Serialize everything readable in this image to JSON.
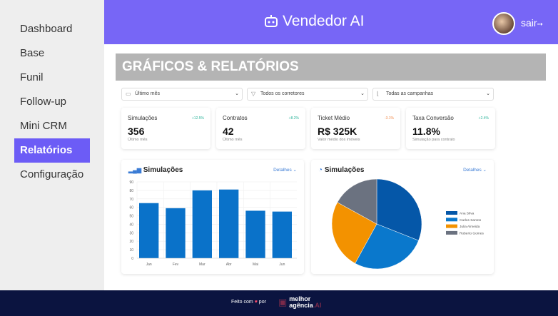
{
  "sidebar": {
    "items": [
      {
        "label": "Dashboard"
      },
      {
        "label": "Base"
      },
      {
        "label": "Funil"
      },
      {
        "label": "Follow-up"
      },
      {
        "label": "Mini CRM"
      },
      {
        "label": "Relatórios",
        "active": true
      },
      {
        "label": "Configuração"
      }
    ]
  },
  "header": {
    "title": "Vendedor AI",
    "logout": "sair"
  },
  "page_title": "GRÁFICOS & RELATÓRIOS",
  "filters": [
    {
      "value": "Último mês",
      "icon": "calendar-icon"
    },
    {
      "value": "Todos os corretores",
      "icon": "filter-icon"
    },
    {
      "value": "Todas as campanhas",
      "icon": "chart-icon"
    }
  ],
  "kpis": [
    {
      "label": "Simulações",
      "change": "+12.5%",
      "value": "356",
      "sub": "Último mês",
      "color": "#2bb39a"
    },
    {
      "label": "Contratos",
      "change": "+8.2%",
      "value": "42",
      "sub": "Último mês",
      "color": "#2bb39a"
    },
    {
      "label": "Ticket Médio",
      "change": "-3.1%",
      "value": "R$ 325K",
      "sub": "Valor médio dos imóveis",
      "color": "#f08a4b"
    },
    {
      "label": "Taxa Conversão",
      "change": "+2.4%",
      "value": "11.8%",
      "sub": "Simulação para contrato",
      "color": "#2bb39a"
    }
  ],
  "details_label": "Detalhes",
  "chart_data": [
    {
      "type": "bar",
      "title": "Simulações",
      "categories": [
        "Jan",
        "Fev",
        "Mar",
        "Abr",
        "Mai",
        "Jun"
      ],
      "values": [
        65,
        59,
        80,
        81,
        56,
        55
      ],
      "ylim": [
        0,
        90
      ],
      "yticks": [
        0,
        10,
        20,
        30,
        40,
        50,
        60,
        70,
        80,
        90
      ],
      "color": "#0a72c9",
      "grid": true
    },
    {
      "type": "pie",
      "title": "Simulações",
      "labels": [
        "Ana Silva",
        "Carlos Santos",
        "Julia Almeida",
        "Roberto Gomes"
      ],
      "values": [
        31,
        27,
        25,
        17
      ],
      "colors": [
        "#0557a8",
        "#0a78cc",
        "#f39200",
        "#6b7280"
      ],
      "legend": "right"
    }
  ],
  "footer": {
    "made_with": "Feito com",
    "by": "por",
    "logo_line1": "melhor",
    "logo_line2": "agência",
    "logo_suffix": ".AI"
  }
}
